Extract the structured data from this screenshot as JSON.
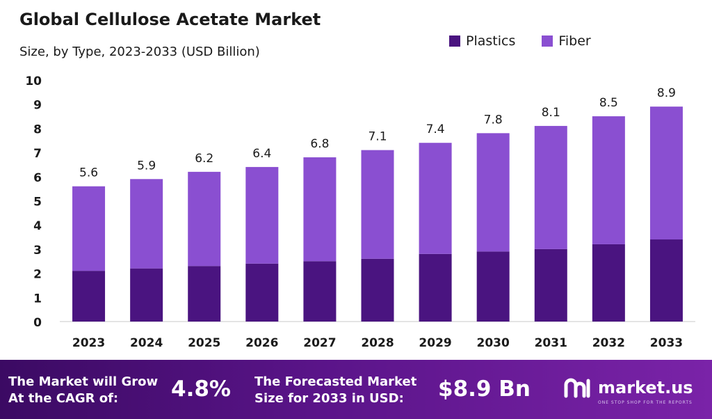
{
  "title": "Global Cellulose Acetate Market",
  "subtitle": "Size, by Type, 2023-2033 (USD Billion)",
  "colors": {
    "plastics": "#4a1480",
    "fiber": "#8a4fd1",
    "footer_start": "#3b0a63",
    "footer_end": "#7a23a8"
  },
  "chart_data": {
    "type": "bar",
    "stacked": true,
    "categories": [
      "2023",
      "2024",
      "2025",
      "2026",
      "2027",
      "2028",
      "2029",
      "2030",
      "2031",
      "2032",
      "2033"
    ],
    "series": [
      {
        "name": "Plastics",
        "values": [
          2.1,
          2.2,
          2.3,
          2.4,
          2.5,
          2.6,
          2.8,
          2.9,
          3.0,
          3.2,
          3.4
        ]
      },
      {
        "name": "Fiber",
        "values": [
          3.5,
          3.7,
          3.9,
          4.0,
          4.3,
          4.5,
          4.6,
          4.9,
          5.1,
          5.3,
          5.5
        ]
      }
    ],
    "totals": [
      "5.6",
      "5.9",
      "6.2",
      "6.4",
      "6.8",
      "7.1",
      "7.4",
      "7.8",
      "8.1",
      "8.5",
      "8.9"
    ],
    "ylim": [
      0,
      10
    ],
    "yticks": [
      "0",
      "1",
      "2",
      "3",
      "4",
      "5",
      "6",
      "7",
      "8",
      "9",
      "10"
    ],
    "legend_position": "top-right",
    "grid": false
  },
  "footer": {
    "cagr_line1": "The Market will Grow",
    "cagr_line2": "At the CAGR of:",
    "cagr_value": "4.8%",
    "forecast_line1": "The Forecasted Market",
    "forecast_line2": "Size for 2033 in USD:",
    "forecast_value": "$8.9 Bn",
    "brand": "market.us",
    "tagline": "ONE STOP SHOP FOR THE REPORTS"
  }
}
